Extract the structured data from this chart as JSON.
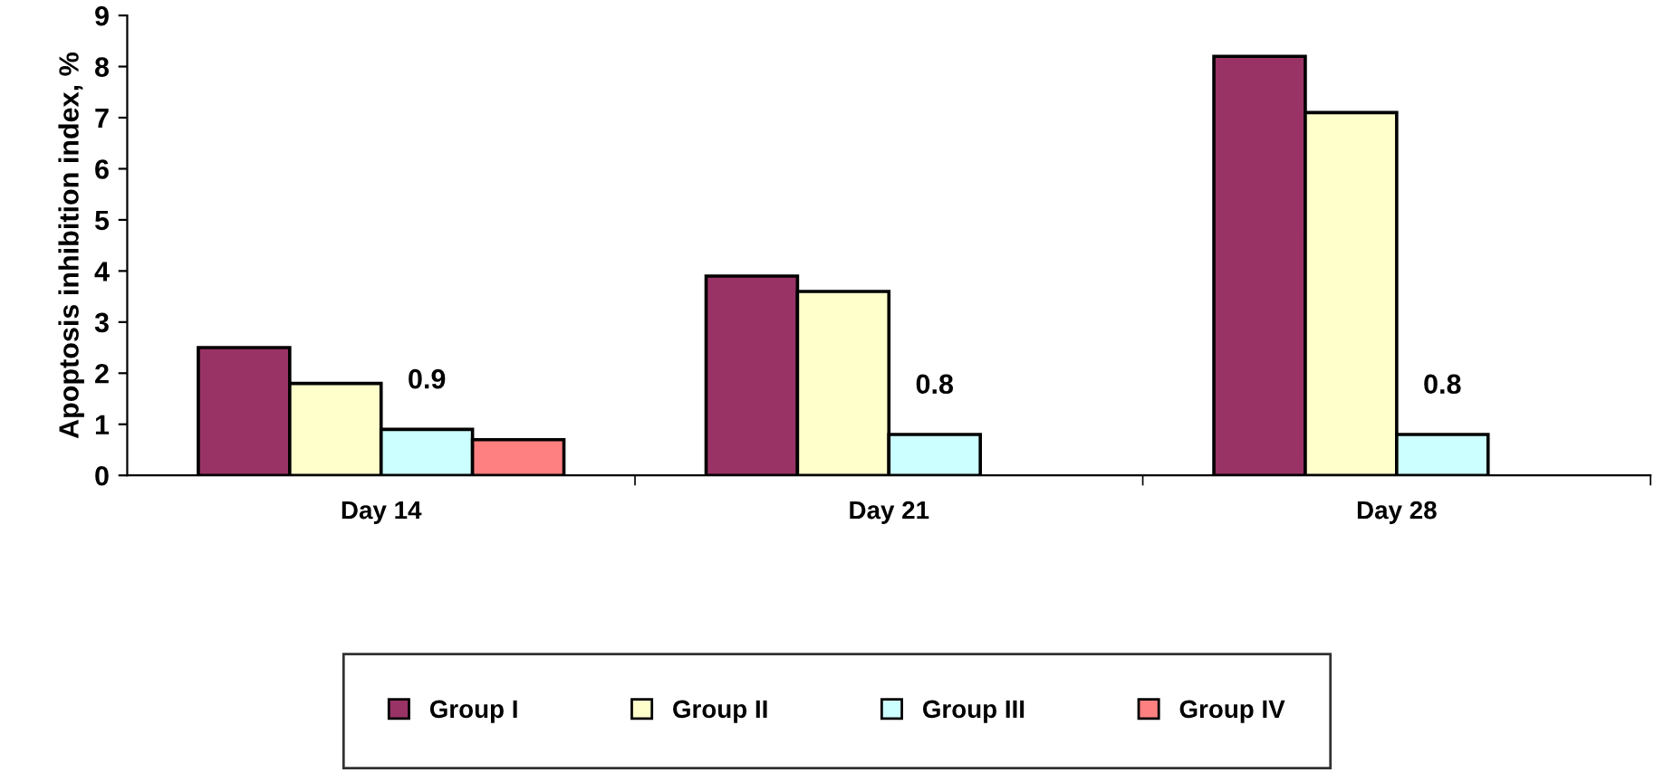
{
  "chart_data": {
    "type": "bar",
    "ylabel": "Apoptosis inhibition index, %",
    "categories": [
      "Day 14",
      "Day 21",
      "Day 28"
    ],
    "series": [
      {
        "name": "Group I",
        "color": "#993366",
        "values": [
          2.5,
          3.9,
          8.2
        ]
      },
      {
        "name": "Group II",
        "color": "#ffffcc",
        "values": [
          1.8,
          3.6,
          7.1
        ]
      },
      {
        "name": "Group III",
        "color": "#ccffff",
        "values": [
          0.9,
          0.8,
          0.8
        ],
        "value_labels": [
          "0.9",
          "0.8",
          "0.8"
        ]
      },
      {
        "name": "Group IV",
        "color": "#ff8080",
        "values": [
          0.7,
          null,
          null
        ]
      }
    ],
    "ylim": [
      0,
      9
    ],
    "yticks": [
      0,
      1,
      2,
      3,
      4,
      5,
      6,
      7,
      8,
      9
    ],
    "grid": false,
    "legend": "bottom"
  }
}
